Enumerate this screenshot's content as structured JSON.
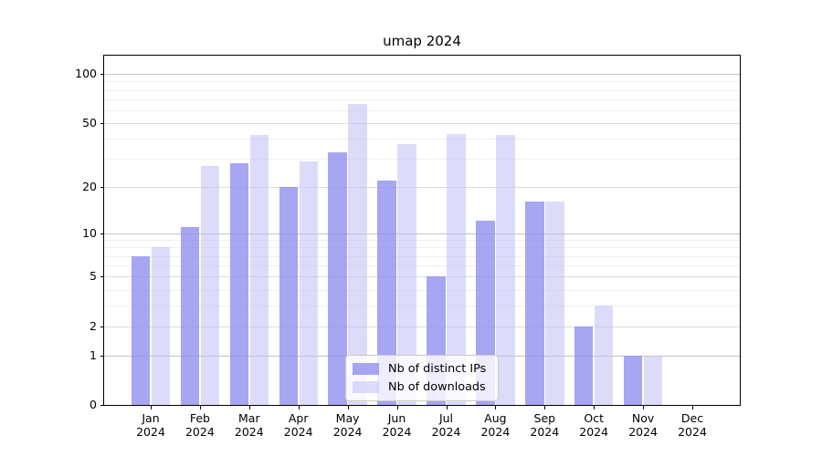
{
  "title": "umap 2024",
  "colors": {
    "ips_bar": "rgba(144,144,239,0.8)",
    "downloads_bar": "rgba(191,191,246,0.55)",
    "grid_major": "#c3c3c3",
    "grid_mid": "#dcdcdc",
    "grid_minor": "#efefef",
    "axis": "#000000",
    "legend_border": "#cccccc"
  },
  "chart_data": {
    "type": "bar",
    "title": "umap 2024",
    "categories": [
      "Jan",
      "Feb",
      "Mar",
      "Apr",
      "May",
      "Jun",
      "Jul",
      "Aug",
      "Sep",
      "Oct",
      "Nov",
      "Dec"
    ],
    "year_label": "2024",
    "series": [
      {
        "name": "Nb of distinct IPs",
        "color": "rgba(144,144,239,0.8)",
        "values": [
          7,
          11,
          28,
          20,
          33,
          22,
          5,
          12,
          16,
          2,
          1,
          0
        ]
      },
      {
        "name": "Nb of downloads",
        "color": "rgba(191,191,246,0.55)",
        "values": [
          8,
          27,
          42,
          29,
          66,
          37,
          43,
          42,
          16,
          3,
          1,
          0
        ]
      }
    ],
    "yscale": "log1p",
    "ylabel": "",
    "xlabel": "",
    "yticks": [
      100,
      50,
      20,
      10,
      5,
      2,
      1,
      0
    ],
    "grid_major_values": [
      100,
      10,
      1
    ],
    "grid_mid_values": [
      50,
      20,
      5,
      2
    ],
    "grid_minor_values": [
      90,
      80,
      70,
      60,
      40,
      30,
      9,
      8,
      7,
      6,
      4,
      3
    ],
    "ylim": [
      0,
      120
    ],
    "grid": true,
    "legend_position": "lower center"
  }
}
